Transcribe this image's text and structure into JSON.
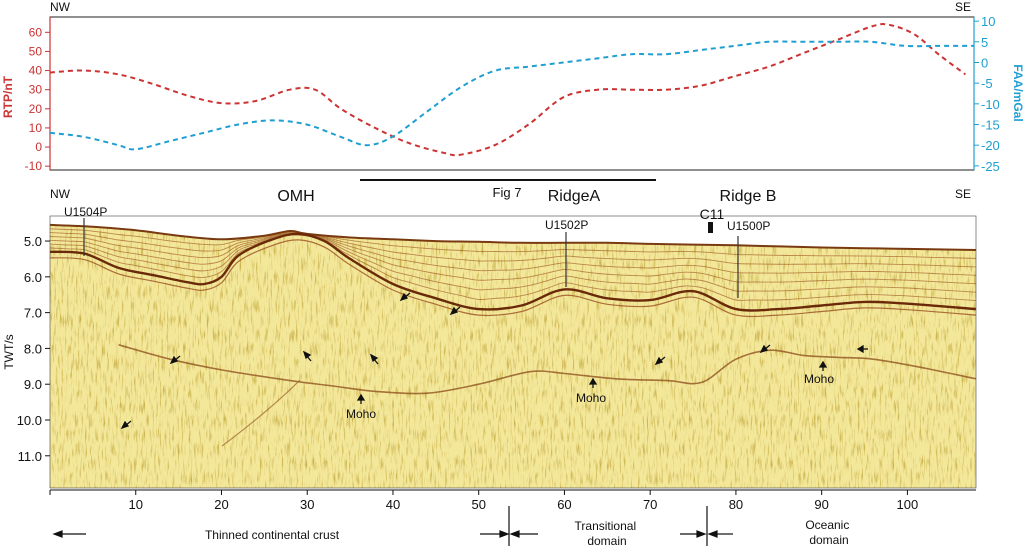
{
  "chart_data": [
    {
      "type": "line",
      "corner_labels": {
        "left": "NW",
        "right": "SE"
      },
      "y_left": {
        "label": "RTP/nT",
        "color": "#cc3333",
        "ticks": [
          "60",
          "50",
          "40",
          "30",
          "20",
          "10",
          "0",
          "-10"
        ],
        "range": [
          -12,
          68
        ]
      },
      "y_right": {
        "label": "FAA/mGal",
        "color": "#1f9fd1",
        "ticks": [
          "10",
          "5",
          "0",
          "-5",
          "-10",
          "-15",
          "-20",
          "-25"
        ],
        "range": [
          -26,
          11
        ]
      },
      "x_range": [
        0,
        108
      ],
      "series": [
        {
          "axis": "left",
          "color": "#cc3333",
          "points": [
            [
              0,
              39
            ],
            [
              4,
              40
            ],
            [
              8,
              38
            ],
            [
              12,
              33
            ],
            [
              16,
              27
            ],
            [
              20,
              23
            ],
            [
              24,
              24
            ],
            [
              28,
              30
            ],
            [
              31,
              30
            ],
            [
              34,
              20
            ],
            [
              38,
              10
            ],
            [
              42,
              2
            ],
            [
              46,
              -3
            ],
            [
              48,
              -4
            ],
            [
              52,
              1
            ],
            [
              56,
              12
            ],
            [
              60,
              26
            ],
            [
              64,
              30
            ],
            [
              68,
              30
            ],
            [
              72,
              30
            ],
            [
              76,
              32
            ],
            [
              80,
              37
            ],
            [
              84,
              42
            ],
            [
              88,
              49
            ],
            [
              92,
              56
            ],
            [
              96,
              63
            ],
            [
              98,
              64
            ],
            [
              101,
              59
            ],
            [
              104,
              48
            ],
            [
              107,
              38
            ]
          ]
        },
        {
          "axis": "right",
          "color": "#1f9fd1",
          "points": [
            [
              0,
              -17
            ],
            [
              4,
              -18
            ],
            [
              8,
              -20
            ],
            [
              10,
              -21
            ],
            [
              14,
              -19
            ],
            [
              18,
              -17
            ],
            [
              22,
              -15
            ],
            [
              26,
              -14
            ],
            [
              30,
              -15
            ],
            [
              34,
              -18
            ],
            [
              37,
              -20
            ],
            [
              40,
              -18
            ],
            [
              44,
              -12
            ],
            [
              48,
              -6
            ],
            [
              52,
              -2
            ],
            [
              56,
              -1
            ],
            [
              60,
              0
            ],
            [
              64,
              1
            ],
            [
              68,
              2
            ],
            [
              72,
              2
            ],
            [
              76,
              3
            ],
            [
              80,
              4
            ],
            [
              84,
              5
            ],
            [
              88,
              5
            ],
            [
              92,
              5
            ],
            [
              96,
              5
            ],
            [
              100,
              4
            ],
            [
              104,
              4
            ],
            [
              108,
              4
            ]
          ]
        }
      ]
    },
    {
      "type": "heatmap",
      "corner_labels": {
        "left": "NW",
        "right": "SE"
      },
      "ylabel": "TWT/s",
      "y_ticks": [
        "5.0",
        "6.0",
        "7.0",
        "8.0",
        "9.0",
        "10.0",
        "11.0"
      ],
      "y_range": [
        4.3,
        11.9
      ],
      "x_ticks": [
        "10",
        "20",
        "30",
        "40",
        "50",
        "60",
        "70",
        "80",
        "90",
        "100"
      ],
      "x_range": [
        0,
        108
      ],
      "section_title": "Fig 7",
      "features": [
        "OMH",
        "RidgeA",
        "Ridge B"
      ],
      "site_labels": [
        "U1504P",
        "U1502P",
        "C11",
        "U1500P"
      ],
      "horizon_label": "Moho",
      "domains": [
        "Thinned continental crust",
        "Transitional domain",
        "Oceanic domain"
      ],
      "seafloor_twt": [
        [
          0,
          4.55
        ],
        [
          5,
          4.6
        ],
        [
          10,
          4.7
        ],
        [
          15,
          4.85
        ],
        [
          20,
          4.95
        ],
        [
          25,
          4.85
        ],
        [
          28,
          4.72
        ],
        [
          30,
          4.8
        ],
        [
          35,
          4.9
        ],
        [
          40,
          4.95
        ],
        [
          45,
          5.0
        ],
        [
          50,
          5.02
        ],
        [
          55,
          5.05
        ],
        [
          60,
          5.05
        ],
        [
          65,
          5.05
        ],
        [
          70,
          5.08
        ],
        [
          75,
          5.1
        ],
        [
          80,
          5.12
        ],
        [
          85,
          5.15
        ],
        [
          90,
          5.18
        ],
        [
          95,
          5.2
        ],
        [
          100,
          5.22
        ],
        [
          108,
          5.25
        ]
      ],
      "basement_twt": [
        [
          0,
          5.3
        ],
        [
          4,
          5.35
        ],
        [
          8,
          5.75
        ],
        [
          12,
          5.95
        ],
        [
          16,
          6.15
        ],
        [
          18,
          6.2
        ],
        [
          20,
          6.0
        ],
        [
          22,
          5.4
        ],
        [
          26,
          4.95
        ],
        [
          29,
          4.8
        ],
        [
          32,
          5.0
        ],
        [
          35,
          5.5
        ],
        [
          40,
          6.2
        ],
        [
          45,
          6.6
        ],
        [
          50,
          6.9
        ],
        [
          55,
          6.8
        ],
        [
          60,
          6.35
        ],
        [
          65,
          6.6
        ],
        [
          70,
          6.65
        ],
        [
          75,
          6.4
        ],
        [
          80,
          6.9
        ],
        [
          85,
          6.9
        ],
        [
          90,
          6.8
        ],
        [
          95,
          6.7
        ],
        [
          100,
          6.75
        ],
        [
          108,
          6.9
        ]
      ],
      "moho_twt": [
        [
          8,
          7.9
        ],
        [
          14,
          8.3
        ],
        [
          20,
          8.6
        ],
        [
          28,
          8.9
        ],
        [
          33,
          9.05
        ],
        [
          38,
          9.2
        ],
        [
          44,
          9.25
        ],
        [
          50,
          9.0
        ],
        [
          56,
          8.65
        ],
        [
          60,
          8.7
        ],
        [
          66,
          8.85
        ],
        [
          72,
          8.9
        ],
        [
          76,
          8.95
        ],
        [
          80,
          8.3
        ],
        [
          84,
          8.05
        ],
        [
          88,
          8.2
        ],
        [
          92,
          8.25
        ],
        [
          96,
          8.3
        ],
        [
          102,
          8.55
        ],
        [
          108,
          8.85
        ]
      ]
    }
  ]
}
